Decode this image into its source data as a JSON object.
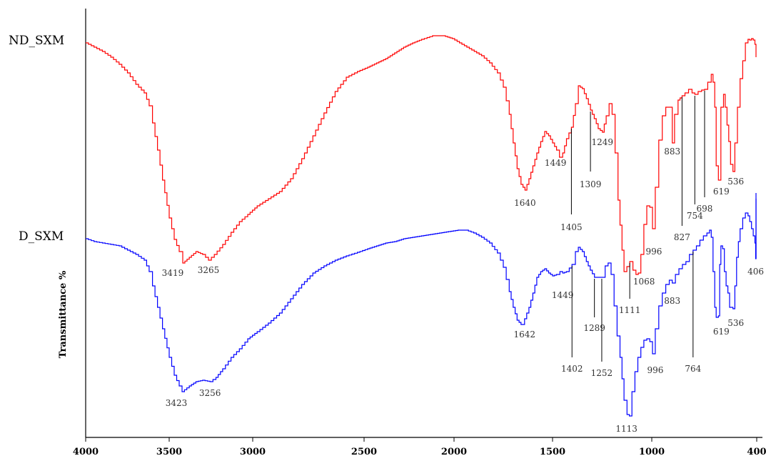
{
  "chart_data": {
    "type": "line",
    "title": "",
    "xlabel": "",
    "ylabel": "Transmittance %",
    "x_reversed": true,
    "xlim": [
      4000,
      400
    ],
    "x_ticks": [
      {
        "value": 4000,
        "label": "4000"
      },
      {
        "value": 3500,
        "label": "3500"
      },
      {
        "value": 3000,
        "label": "3000"
      },
      {
        "value": 2500,
        "label": "2500"
      },
      {
        "value": 2000,
        "label": "2000"
      },
      {
        "value": 1500,
        "label": "1500"
      },
      {
        "value": 1000,
        "label": "1000"
      },
      {
        "value": 400,
        "label": "400"
      }
    ],
    "grid": false,
    "series": [
      {
        "name": "ND_SXM",
        "color": "#ff0000",
        "points": [
          [
            4000,
            60
          ],
          [
            3950,
            66
          ],
          [
            3900,
            72
          ],
          [
            3850,
            80
          ],
          [
            3800,
            90
          ],
          [
            3750,
            102
          ],
          [
            3700,
            118
          ],
          [
            3650,
            130
          ],
          [
            3620,
            148
          ],
          [
            3600,
            172
          ],
          [
            3570,
            210
          ],
          [
            3540,
            252
          ],
          [
            3500,
            305
          ],
          [
            3470,
            335
          ],
          [
            3440,
            352
          ],
          [
            3419,
            368
          ],
          [
            3380,
            360
          ],
          [
            3340,
            352
          ],
          [
            3300,
            356
          ],
          [
            3265,
            364
          ],
          [
            3230,
            356
          ],
          [
            3180,
            342
          ],
          [
            3130,
            325
          ],
          [
            3080,
            310
          ],
          [
            3030,
            300
          ],
          [
            2980,
            288
          ],
          [
            2930,
            278
          ],
          [
            2880,
            268
          ],
          [
            2830,
            250
          ],
          [
            2780,
            222
          ],
          [
            2730,
            190
          ],
          [
            2680,
            158
          ],
          [
            2630,
            128
          ],
          [
            2580,
            108
          ],
          [
            2530,
            100
          ],
          [
            2480,
            94
          ],
          [
            2430,
            88
          ],
          [
            2380,
            82
          ],
          [
            2330,
            74
          ],
          [
            2280,
            66
          ],
          [
            2230,
            60
          ],
          [
            2180,
            55
          ],
          [
            2120,
            50
          ],
          [
            2060,
            50
          ],
          [
            2010,
            54
          ],
          [
            1960,
            62
          ],
          [
            1910,
            70
          ],
          [
            1860,
            78
          ],
          [
            1820,
            88
          ],
          [
            1780,
            102
          ],
          [
            1750,
            122
          ],
          [
            1720,
            160
          ],
          [
            1700,
            200
          ],
          [
            1680,
            236
          ],
          [
            1660,
            258
          ],
          [
            1640,
            266
          ],
          [
            1620,
            250
          ],
          [
            1600,
            232
          ],
          [
            1580,
            214
          ],
          [
            1560,
            198
          ],
          [
            1540,
            184
          ],
          [
            1520,
            190
          ],
          [
            1500,
            200
          ],
          [
            1480,
            210
          ],
          [
            1465,
            220
          ],
          [
            1449,
            214
          ],
          [
            1430,
            194
          ],
          [
            1405,
            178
          ],
          [
            1385,
            145
          ],
          [
            1370,
            120
          ],
          [
            1350,
            124
          ],
          [
            1330,
            138
          ],
          [
            1309,
            154
          ],
          [
            1290,
            166
          ],
          [
            1270,
            180
          ],
          [
            1249,
            185
          ],
          [
            1230,
            162
          ],
          [
            1215,
            145
          ],
          [
            1200,
            160
          ],
          [
            1185,
            214
          ],
          [
            1170,
            280
          ],
          [
            1150,
            350
          ],
          [
            1140,
            380
          ],
          [
            1111,
            366
          ],
          [
            1095,
            378
          ],
          [
            1080,
            384
          ],
          [
            1068,
            382
          ],
          [
            1055,
            356
          ],
          [
            1040,
            314
          ],
          [
            1025,
            288
          ],
          [
            1010,
            290
          ],
          [
            996,
            320
          ],
          [
            980,
            262
          ],
          [
            960,
            196
          ],
          [
            940,
            162
          ],
          [
            920,
            150
          ],
          [
            900,
            150
          ],
          [
            883,
            200
          ],
          [
            870,
            160
          ],
          [
            850,
            140
          ],
          [
            827,
            134
          ],
          [
            810,
            130
          ],
          [
            790,
            125
          ],
          [
            770,
            130
          ],
          [
            754,
            132
          ],
          [
            735,
            128
          ],
          [
            715,
            126
          ],
          [
            698,
            125
          ],
          [
            680,
            115
          ],
          [
            660,
            104
          ],
          [
            650,
            115
          ],
          [
            640,
            150
          ],
          [
            632,
            232
          ],
          [
            619,
            252
          ],
          [
            605,
            150
          ],
          [
            590,
            132
          ],
          [
            580,
            150
          ],
          [
            570,
            175
          ],
          [
            560,
            198
          ],
          [
            550,
            230
          ],
          [
            536,
            240
          ],
          [
            525,
            200
          ],
          [
            510,
            150
          ],
          [
            495,
            110
          ],
          [
            480,
            85
          ],
          [
            465,
            60
          ],
          [
            450,
            55
          ],
          [
            440,
            56
          ],
          [
            430,
            54
          ],
          [
            420,
            56
          ],
          [
            410,
            62
          ],
          [
            404,
            80
          ]
        ]
      },
      {
        "name": "D_SXM",
        "color": "#0000ff",
        "points": [
          [
            4000,
            334
          ],
          [
            3950,
            338
          ],
          [
            3900,
            340
          ],
          [
            3850,
            342
          ],
          [
            3800,
            344
          ],
          [
            3750,
            350
          ],
          [
            3700,
            356
          ],
          [
            3650,
            364
          ],
          [
            3620,
            380
          ],
          [
            3600,
            400
          ],
          [
            3570,
            430
          ],
          [
            3540,
            460
          ],
          [
            3500,
            500
          ],
          [
            3470,
            525
          ],
          [
            3440,
            540
          ],
          [
            3423,
            548
          ],
          [
            3380,
            540
          ],
          [
            3340,
            534
          ],
          [
            3300,
            532
          ],
          [
            3256,
            534
          ],
          [
            3220,
            528
          ],
          [
            3180,
            516
          ],
          [
            3130,
            500
          ],
          [
            3080,
            488
          ],
          [
            3030,
            474
          ],
          [
            2980,
            464
          ],
          [
            2930,
            452
          ],
          [
            2880,
            438
          ],
          [
            2830,
            418
          ],
          [
            2780,
            398
          ],
          [
            2730,
            382
          ],
          [
            2680,
            372
          ],
          [
            2630,
            364
          ],
          [
            2580,
            358
          ],
          [
            2530,
            353
          ],
          [
            2480,
            348
          ],
          [
            2430,
            344
          ],
          [
            2380,
            340
          ],
          [
            2330,
            338
          ],
          [
            2280,
            334
          ],
          [
            2230,
            332
          ],
          [
            2180,
            330
          ],
          [
            2130,
            328
          ],
          [
            2080,
            326
          ],
          [
            2030,
            324
          ],
          [
            1980,
            322
          ],
          [
            1940,
            322
          ],
          [
            1900,
            326
          ],
          [
            1860,
            332
          ],
          [
            1820,
            340
          ],
          [
            1780,
            354
          ],
          [
            1750,
            374
          ],
          [
            1720,
            408
          ],
          [
            1700,
            430
          ],
          [
            1680,
            448
          ],
          [
            1660,
            454
          ],
          [
            1642,
            446
          ],
          [
            1620,
            430
          ],
          [
            1600,
            410
          ],
          [
            1580,
            388
          ],
          [
            1560,
            380
          ],
          [
            1540,
            376
          ],
          [
            1520,
            382
          ],
          [
            1500,
            386
          ],
          [
            1480,
            384
          ],
          [
            1463,
            380
          ],
          [
            1449,
            382
          ],
          [
            1430,
            380
          ],
          [
            1402,
            370
          ],
          [
            1385,
            352
          ],
          [
            1370,
            346
          ],
          [
            1350,
            352
          ],
          [
            1330,
            366
          ],
          [
            1310,
            378
          ],
          [
            1289,
            388
          ],
          [
            1270,
            388
          ],
          [
            1252,
            388
          ],
          [
            1235,
            372
          ],
          [
            1220,
            368
          ],
          [
            1205,
            384
          ],
          [
            1190,
            428
          ],
          [
            1175,
            470
          ],
          [
            1160,
            500
          ],
          [
            1150,
            530
          ],
          [
            1140,
            560
          ],
          [
            1125,
            580
          ],
          [
            1113,
            582
          ],
          [
            1100,
            548
          ],
          [
            1085,
            520
          ],
          [
            1070,
            500
          ],
          [
            1055,
            486
          ],
          [
            1040,
            476
          ],
          [
            1025,
            474
          ],
          [
            1010,
            478
          ],
          [
            996,
            495
          ],
          [
            980,
            460
          ],
          [
            960,
            428
          ],
          [
            940,
            410
          ],
          [
            920,
            398
          ],
          [
            900,
            392
          ],
          [
            883,
            396
          ],
          [
            865,
            384
          ],
          [
            845,
            376
          ],
          [
            825,
            370
          ],
          [
            805,
            366
          ],
          [
            785,
            356
          ],
          [
            764,
            350
          ],
          [
            745,
            344
          ],
          [
            725,
            336
          ],
          [
            705,
            330
          ],
          [
            685,
            326
          ],
          [
            670,
            322
          ],
          [
            660,
            332
          ],
          [
            650,
            380
          ],
          [
            640,
            430
          ],
          [
            632,
            444
          ],
          [
            619,
            442
          ],
          [
            612,
            370
          ],
          [
            605,
            344
          ],
          [
            595,
            348
          ],
          [
            585,
            380
          ],
          [
            575,
            400
          ],
          [
            565,
            410
          ],
          [
            555,
            430
          ],
          [
            536,
            432
          ],
          [
            525,
            400
          ],
          [
            515,
            360
          ],
          [
            505,
            338
          ],
          [
            495,
            320
          ],
          [
            480,
            305
          ],
          [
            465,
            298
          ],
          [
            450,
            302
          ],
          [
            440,
            310
          ],
          [
            430,
            320
          ],
          [
            420,
            330
          ],
          [
            410,
            340
          ],
          [
            406,
            362
          ],
          [
            404,
            270
          ]
        ]
      }
    ],
    "annotations_nd": [
      {
        "label": "3419",
        "x": 3419
      },
      {
        "label": "3265",
        "x": 3265
      },
      {
        "label": "1640",
        "x": 1640
      },
      {
        "label": "1449",
        "x": 1449
      },
      {
        "label": "1405",
        "x": 1405
      },
      {
        "label": "1309",
        "x": 1309
      },
      {
        "label": "1249",
        "x": 1249
      },
      {
        "label": "1111",
        "x": 1111
      },
      {
        "label": "1068",
        "x": 1068
      },
      {
        "label": "996",
        "x": 996
      },
      {
        "label": "883",
        "x": 883
      },
      {
        "label": "827",
        "x": 827
      },
      {
        "label": "754",
        "x": 754
      },
      {
        "label": "698",
        "x": 698
      },
      {
        "label": "619",
        "x": 619
      },
      {
        "label": "536",
        "x": 536
      }
    ],
    "annotations_d": [
      {
        "label": "3423",
        "x": 3423
      },
      {
        "label": "3256",
        "x": 3256
      },
      {
        "label": "1642",
        "x": 1642
      },
      {
        "label": "1449",
        "x": 1449
      },
      {
        "label": "1402",
        "x": 1402
      },
      {
        "label": "1289",
        "x": 1289
      },
      {
        "label": "1252",
        "x": 1252
      },
      {
        "label": "1113",
        "x": 1113
      },
      {
        "label": "996",
        "x": 996
      },
      {
        "label": "883",
        "x": 883
      },
      {
        "label": "764",
        "x": 764
      },
      {
        "label": "619",
        "x": 619
      },
      {
        "label": "536",
        "x": 536
      },
      {
        "label": "406",
        "x": 406
      }
    ]
  }
}
